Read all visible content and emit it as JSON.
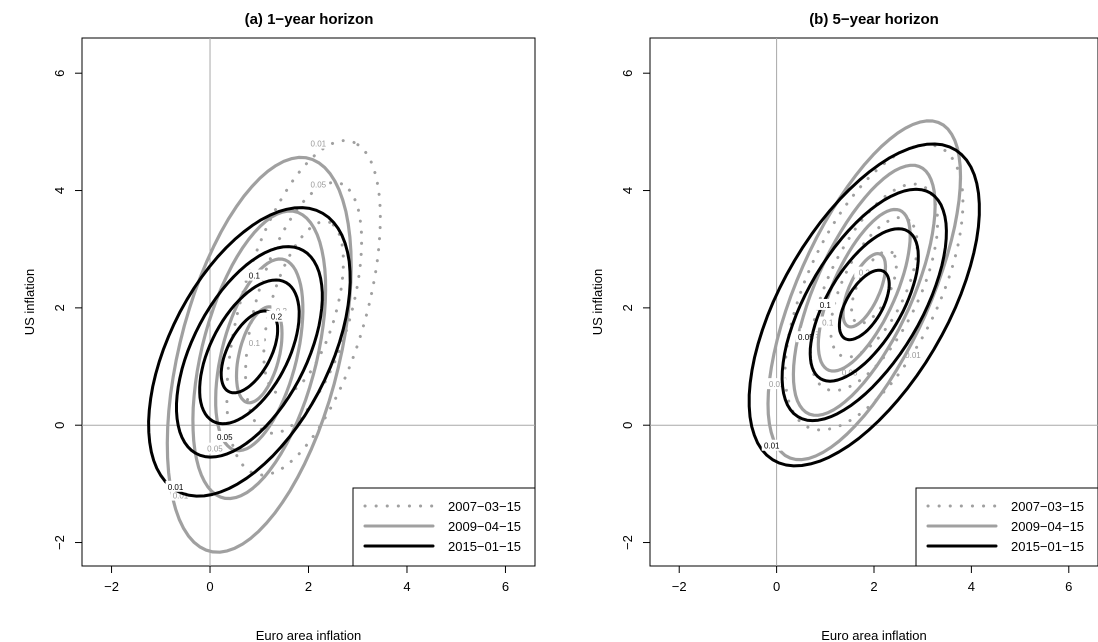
{
  "chart_data": [
    {
      "type": "contour",
      "title": "(a) 1−year horizon",
      "xlabel": "Euro area inflation",
      "ylabel": "US inflation",
      "xlim": [
        -2.6,
        6.6
      ],
      "ylim": [
        -2.4,
        6.6
      ],
      "xticks": [
        "−2",
        "0",
        "2",
        "4",
        "6"
      ],
      "xtick_values": [
        -2,
        0,
        2,
        4,
        6
      ],
      "yticks": [
        "−2",
        "0",
        "2",
        "4",
        "6"
      ],
      "ytick_values": [
        -2,
        0,
        2,
        4,
        6
      ],
      "reference_lines": {
        "x": 0,
        "y": 0
      },
      "legend_position": "bottom-right",
      "series": [
        {
          "name": "2007−03−15",
          "style": "dotted",
          "color": "#a0a0a0",
          "contours": [
            {
              "level": "0.01",
              "center": [
                1.9,
                2.0
              ],
              "semi_axes": [
                3.0,
                1.25
              ],
              "angle_deg": 70,
              "label_at": [
                2.2,
                4.8
              ]
            },
            {
              "level": "0.05",
              "center": [
                1.9,
                2.0
              ],
              "semi_axes": [
                2.25,
                0.95
              ],
              "angle_deg": 70,
              "label_at": [
                2.2,
                4.1
              ]
            },
            {
              "level": "0.1",
              "center": [
                1.9,
                2.0
              ],
              "semi_axes": [
                1.55,
                0.65
              ],
              "angle_deg": 70,
              "label_at": null
            }
          ]
        },
        {
          "name": "2009−04−15",
          "style": "solid",
          "color": "#a0a0a0",
          "contours": [
            {
              "level": "0.01",
              "center": [
                1.0,
                1.2
              ],
              "semi_axes": [
                3.5,
                1.6
              ],
              "angle_deg": 72,
              "label_at": [
                -0.6,
                -1.2
              ]
            },
            {
              "level": "0.05",
              "center": [
                1.0,
                1.2
              ],
              "semi_axes": [
                2.55,
                1.15
              ],
              "angle_deg": 72,
              "label_at": [
                0.1,
                -0.4
              ]
            },
            {
              "level": "0.1",
              "center": [
                1.0,
                1.2
              ],
              "semi_axes": [
                1.7,
                0.75
              ],
              "angle_deg": 72,
              "label_at": [
                0.9,
                1.4
              ]
            },
            {
              "level": "0.2",
              "center": [
                1.0,
                1.2
              ],
              "semi_axes": [
                0.85,
                0.4
              ],
              "angle_deg": 72,
              "label_at": [
                1.45,
                1.95
              ]
            }
          ]
        },
        {
          "name": "2015−01−15",
          "style": "solid",
          "color": "#000000",
          "contours": [
            {
              "level": "0.01",
              "center": [
                0.8,
                1.25
              ],
              "semi_axes": [
                2.8,
                1.55
              ],
              "angle_deg": 55,
              "label_at": [
                -0.7,
                -1.05
              ]
            },
            {
              "level": "0.05",
              "center": [
                0.8,
                1.25
              ],
              "semi_axes": [
                2.05,
                1.1
              ],
              "angle_deg": 55,
              "label_at": [
                0.3,
                -0.2
              ]
            },
            {
              "level": "0.1",
              "center": [
                0.8,
                1.25
              ],
              "semi_axes": [
                1.4,
                0.75
              ],
              "angle_deg": 55,
              "label_at": [
                0.9,
                2.55
              ]
            },
            {
              "level": "0.2",
              "center": [
                0.8,
                1.25
              ],
              "semi_axes": [
                0.8,
                0.42
              ],
              "angle_deg": 55,
              "label_at": [
                1.35,
                1.85
              ]
            }
          ]
        }
      ]
    },
    {
      "type": "contour",
      "title": "(b) 5−year horizon",
      "xlabel": "Euro area inflation",
      "ylabel": "US inflation",
      "xlim": [
        -2.6,
        6.6
      ],
      "ylim": [
        -2.4,
        6.6
      ],
      "xticks": [
        "−2",
        "0",
        "2",
        "4",
        "6"
      ],
      "xtick_values": [
        -2,
        0,
        2,
        4,
        6
      ],
      "yticks": [
        "−2",
        "0",
        "2",
        "4",
        "6"
      ],
      "ytick_values": [
        -2,
        0,
        2,
        4,
        6
      ],
      "reference_lines": {
        "x": 0,
        "y": 0
      },
      "legend_position": "bottom-right",
      "series": [
        {
          "name": "2007−03−15",
          "style": "dotted",
          "color": "#a0a0a0",
          "contours": [
            {
              "level": "0.01",
              "center": [
                2.0,
                2.35
              ],
              "semi_axes": [
                2.75,
                1.3
              ],
              "angle_deg": 58,
              "label_at": [
                2.8,
                1.2
              ]
            },
            {
              "level": "0.05",
              "center": [
                2.0,
                2.35
              ],
              "semi_axes": [
                2.0,
                0.9
              ],
              "angle_deg": 58,
              "label_at": [
                1.5,
                0.9
              ]
            },
            {
              "level": "0.1",
              "center": [
                2.0,
                2.35
              ],
              "semi_axes": [
                1.35,
                0.62
              ],
              "angle_deg": 58,
              "label_at": null
            },
            {
              "level": "0.2",
              "center": [
                2.0,
                2.35
              ],
              "semi_axes": [
                0.7,
                0.32
              ],
              "angle_deg": 58,
              "label_at": null
            }
          ]
        },
        {
          "name": "2009−04−15",
          "style": "solid",
          "color": "#a0a0a0",
          "contours": [
            {
              "level": "0.01",
              "center": [
                1.8,
                2.3
              ],
              "semi_axes": [
                3.25,
                1.3
              ],
              "angle_deg": 60,
              "label_at": [
                0.0,
                0.7
              ]
            },
            {
              "level": "0.05",
              "center": [
                1.8,
                2.3
              ],
              "semi_axes": [
                2.4,
                0.95
              ],
              "angle_deg": 60,
              "label_at": [
                0.7,
                1.55
              ]
            },
            {
              "level": "0.1",
              "center": [
                1.8,
                2.3
              ],
              "semi_axes": [
                1.55,
                0.62
              ],
              "angle_deg": 60,
              "label_at": [
                1.05,
                1.75
              ]
            },
            {
              "level": "0.2",
              "center": [
                1.8,
                2.3
              ],
              "semi_axes": [
                0.7,
                0.3
              ],
              "angle_deg": 60,
              "label_at": [
                1.8,
                2.6
              ]
            }
          ]
        },
        {
          "name": "2015−01−15",
          "style": "solid",
          "color": "#000000",
          "contours": [
            {
              "level": "0.01",
              "center": [
                1.8,
                2.05
              ],
              "semi_axes": [
                3.25,
                1.6
              ],
              "angle_deg": 52,
              "label_at": [
                -0.1,
                -0.35
              ]
            },
            {
              "level": "0.05",
              "center": [
                1.8,
                2.05
              ],
              "semi_axes": [
                2.35,
                1.1
              ],
              "angle_deg": 52,
              "label_at": [
                0.6,
                1.5
              ]
            },
            {
              "level": "0.1",
              "center": [
                1.8,
                2.05
              ],
              "semi_axes": [
                1.55,
                0.72
              ],
              "angle_deg": 52,
              "label_at": [
                1.0,
                2.05
              ]
            },
            {
              "level": "0.2",
              "center": [
                1.8,
                2.05
              ],
              "semi_axes": [
                0.7,
                0.35
              ],
              "angle_deg": 52,
              "label_at": null
            }
          ]
        }
      ]
    }
  ]
}
